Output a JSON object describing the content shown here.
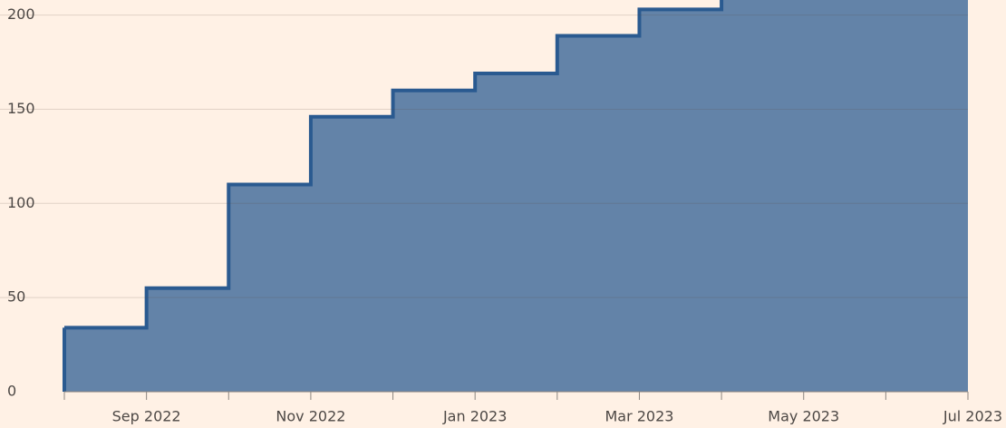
{
  "chart_data": {
    "type": "step-area",
    "categories": [
      null,
      "Sep 2022",
      null,
      "Nov 2022",
      null,
      "Jan 2023",
      null,
      "Mar 2023",
      null,
      "May 2023",
      null,
      "Jul 2023"
    ],
    "series": [
      {
        "color": "#2a5a90",
        "fill": "#6383a8",
        "values": [
          34,
          55,
          110,
          146,
          160,
          169,
          189,
          203,
          215,
          215,
          215,
          215
        ]
      }
    ],
    "ylim": [
      0,
      208
    ],
    "yticks": [
      0,
      50,
      100,
      150,
      200
    ],
    "grid": true
  }
}
